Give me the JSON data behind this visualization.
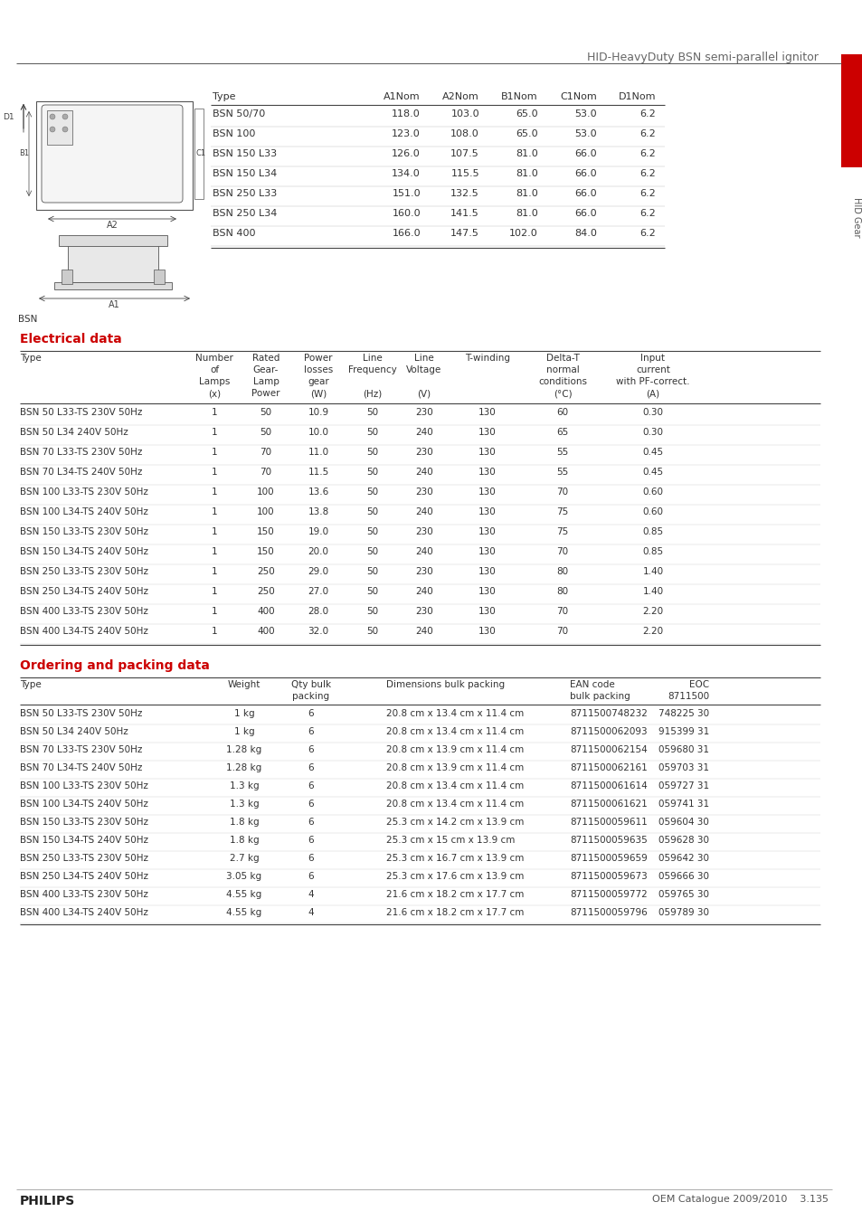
{
  "title": "HID-HeavyDuty BSN semi-parallel ignitor",
  "page_bg": "#ffffff",
  "section_title_color": "#cc0000",
  "text_color": "#333333",
  "dim_table": {
    "headers": [
      "Type",
      "A1Nom",
      "A2Nom",
      "B1Nom",
      "C1Nom",
      "D1Nom"
    ],
    "rows": [
      [
        "BSN 50/70",
        "118.0",
        "103.0",
        "65.0",
        "53.0",
        "6.2"
      ],
      [
        "BSN 100",
        "123.0",
        "108.0",
        "65.0",
        "53.0",
        "6.2"
      ],
      [
        "BSN 150 L33",
        "126.0",
        "107.5",
        "81.0",
        "66.0",
        "6.2"
      ],
      [
        "BSN 150 L34",
        "134.0",
        "115.5",
        "81.0",
        "66.0",
        "6.2"
      ],
      [
        "BSN 250 L33",
        "151.0",
        "132.5",
        "81.0",
        "66.0",
        "6.2"
      ],
      [
        "BSN 250 L34",
        "160.0",
        "141.5",
        "81.0",
        "66.0",
        "6.2"
      ],
      [
        "BSN 400",
        "166.0",
        "147.5",
        "102.0",
        "84.0",
        "6.2"
      ]
    ]
  },
  "elec_section": "Electrical data",
  "elec_table": {
    "col_headers": [
      [
        "Type",
        "Number",
        "Rated",
        "Power",
        "Line",
        "Line",
        "T-winding",
        "Delta-T",
        "Input"
      ],
      [
        "",
        "of",
        "Gear-",
        "losses",
        "Frequency",
        "Voltage",
        "",
        "normal",
        "current"
      ],
      [
        "",
        "Lamps",
        "Lamp",
        "gear",
        "",
        "",
        "",
        "conditions",
        "with PF-correct."
      ],
      [
        "",
        "(x)",
        "Power",
        "(W)",
        "(Hz)",
        "(V)",
        "",
        "(°C)",
        "(A)"
      ]
    ],
    "rows": [
      [
        "BSN 50 L33-TS 230V 50Hz",
        "1",
        "50",
        "10.9",
        "50",
        "230",
        "130",
        "60",
        "0.30"
      ],
      [
        "BSN 50 L34 240V 50Hz",
        "1",
        "50",
        "10.0",
        "50",
        "240",
        "130",
        "65",
        "0.30"
      ],
      [
        "BSN 70 L33-TS 230V 50Hz",
        "1",
        "70",
        "11.0",
        "50",
        "230",
        "130",
        "55",
        "0.45"
      ],
      [
        "BSN 70 L34-TS 240V 50Hz",
        "1",
        "70",
        "11.5",
        "50",
        "240",
        "130",
        "55",
        "0.45"
      ],
      [
        "BSN 100 L33-TS 230V 50Hz",
        "1",
        "100",
        "13.6",
        "50",
        "230",
        "130",
        "70",
        "0.60"
      ],
      [
        "BSN 100 L34-TS 240V 50Hz",
        "1",
        "100",
        "13.8",
        "50",
        "240",
        "130",
        "75",
        "0.60"
      ],
      [
        "BSN 150 L33-TS 230V 50Hz",
        "1",
        "150",
        "19.0",
        "50",
        "230",
        "130",
        "75",
        "0.85"
      ],
      [
        "BSN 150 L34-TS 240V 50Hz",
        "1",
        "150",
        "20.0",
        "50",
        "240",
        "130",
        "70",
        "0.85"
      ],
      [
        "BSN 250 L33-TS 230V 50Hz",
        "1",
        "250",
        "29.0",
        "50",
        "230",
        "130",
        "80",
        "1.40"
      ],
      [
        "BSN 250 L34-TS 240V 50Hz",
        "1",
        "250",
        "27.0",
        "50",
        "240",
        "130",
        "80",
        "1.40"
      ],
      [
        "BSN 400 L33-TS 230V 50Hz",
        "1",
        "400",
        "28.0",
        "50",
        "230",
        "130",
        "70",
        "2.20"
      ],
      [
        "BSN 400 L34-TS 240V 50Hz",
        "1",
        "400",
        "32.0",
        "50",
        "240",
        "130",
        "70",
        "2.20"
      ]
    ]
  },
  "order_section": "Ordering and packing data",
  "order_table": {
    "col_headers": [
      [
        "Type",
        "Weight",
        "Qty bulk",
        "Dimensions bulk packing",
        "EAN code",
        "EOC"
      ],
      [
        "",
        "",
        "packing",
        "",
        "bulk packing",
        "8711500"
      ]
    ],
    "rows": [
      [
        "BSN 50 L33-TS 230V 50Hz",
        "1 kg",
        "6",
        "20.8 cm x 13.4 cm x 11.4 cm",
        "8711500748232",
        "748225 30"
      ],
      [
        "BSN 50 L34 240V 50Hz",
        "1 kg",
        "6",
        "20.8 cm x 13.4 cm x 11.4 cm",
        "8711500062093",
        "915399 31"
      ],
      [
        "BSN 70 L33-TS 230V 50Hz",
        "1.28 kg",
        "6",
        "20.8 cm x 13.9 cm x 11.4 cm",
        "8711500062154",
        "059680 31"
      ],
      [
        "BSN 70 L34-TS 240V 50Hz",
        "1.28 kg",
        "6",
        "20.8 cm x 13.9 cm x 11.4 cm",
        "8711500062161",
        "059703 31"
      ],
      [
        "BSN 100 L33-TS 230V 50Hz",
        "1.3 kg",
        "6",
        "20.8 cm x 13.4 cm x 11.4 cm",
        "8711500061614",
        "059727 31"
      ],
      [
        "BSN 100 L34-TS 240V 50Hz",
        "1.3 kg",
        "6",
        "20.8 cm x 13.4 cm x 11.4 cm",
        "8711500061621",
        "059741 31"
      ],
      [
        "BSN 150 L33-TS 230V 50Hz",
        "1.8 kg",
        "6",
        "25.3 cm x 14.2 cm x 13.9 cm",
        "8711500059611",
        "059604 30"
      ],
      [
        "BSN 150 L34-TS 240V 50Hz",
        "1.8 kg",
        "6",
        "25.3 cm x 15 cm x 13.9 cm",
        "8711500059635",
        "059628 30"
      ],
      [
        "BSN 250 L33-TS 230V 50Hz",
        "2.7 kg",
        "6",
        "25.3 cm x 16.7 cm x 13.9 cm",
        "8711500059659",
        "059642 30"
      ],
      [
        "BSN 250 L34-TS 240V 50Hz",
        "3.05 kg",
        "6",
        "25.3 cm x 17.6 cm x 13.9 cm",
        "8711500059673",
        "059666 30"
      ],
      [
        "BSN 400 L33-TS 230V 50Hz",
        "4.55 kg",
        "4",
        "21.6 cm x 18.2 cm x 17.7 cm",
        "8711500059772",
        "059765 30"
      ],
      [
        "BSN 400 L34-TS 240V 50Hz",
        "4.55 kg",
        "4",
        "21.6 cm x 18.2 cm x 17.7 cm",
        "8711500059796",
        "059789 30"
      ]
    ]
  },
  "footer_left": "PHILIPS",
  "footer_right": "OEM Catalogue 2009/2010    3.135",
  "hid_gear_label": "HID Gear",
  "sidebar_color": "#cc0000"
}
